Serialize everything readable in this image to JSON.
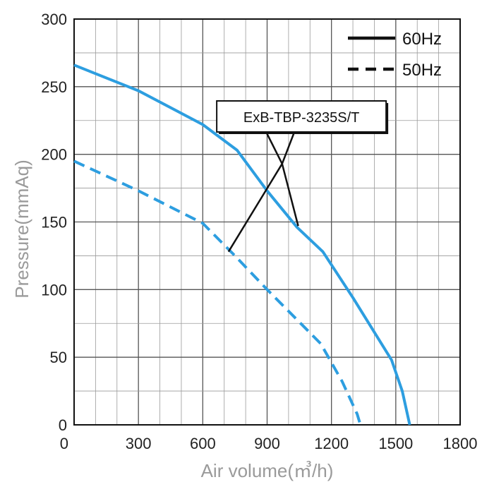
{
  "chart_data": {
    "type": "line",
    "title": "",
    "xlabel": "Air volume(㎥/h)",
    "ylabel": "Pressure(mmAq)",
    "xlim": [
      0,
      1800
    ],
    "ylim": [
      0,
      300
    ],
    "x_ticks": [
      0,
      300,
      600,
      900,
      1200,
      1500,
      1800
    ],
    "y_ticks": [
      0,
      50,
      100,
      150,
      200,
      250,
      300
    ],
    "x_tick_labels": [
      "0",
      "300",
      "600",
      "900",
      "1200",
      "1500",
      "1800"
    ],
    "y_tick_labels": [
      "0",
      "50",
      "100",
      "150",
      "200",
      "250",
      "300"
    ],
    "grid": true,
    "legend_position": "top-right",
    "series": [
      {
        "name": "60Hz",
        "line_style": "solid",
        "color": "#2d9ee0",
        "points": [
          [
            0,
            266
          ],
          [
            300,
            247
          ],
          [
            600,
            222
          ],
          [
            760,
            203
          ],
          [
            900,
            173
          ],
          [
            1040,
            146
          ],
          [
            1160,
            128
          ],
          [
            1300,
            94
          ],
          [
            1480,
            48
          ],
          [
            1530,
            25
          ],
          [
            1565,
            0
          ]
        ]
      },
      {
        "name": "50Hz",
        "line_style": "dashed",
        "color": "#2d9ee0",
        "points": [
          [
            0,
            195
          ],
          [
            300,
            173
          ],
          [
            600,
            149
          ],
          [
            750,
            125
          ],
          [
            900,
            100
          ],
          [
            1050,
            76
          ],
          [
            1150,
            60
          ],
          [
            1250,
            32
          ],
          [
            1320,
            8
          ],
          [
            1335,
            0
          ]
        ]
      }
    ],
    "annotations": [
      {
        "text": "ExB-TBP-3235S/T",
        "box_center": [
          1060,
          228
        ],
        "pointer_hub": [
          970,
          193
        ],
        "targets": [
          [
            720,
            128
          ],
          [
            1045,
            147
          ]
        ]
      }
    ]
  }
}
